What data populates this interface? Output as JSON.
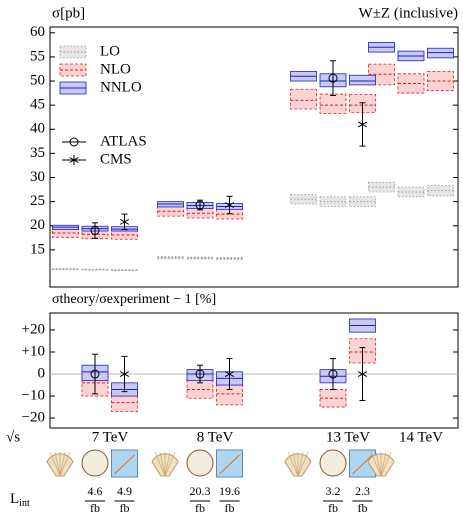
{
  "chart_data": [
    {
      "type": "band",
      "title": "W±Z (inclusive)",
      "y_label": "σ[pb]",
      "ylim": [
        7.3,
        61.2
      ],
      "yticks": [
        15,
        20,
        25,
        30,
        35,
        40,
        45,
        50,
        55,
        60
      ],
      "series": [
        {
          "name": "LO",
          "color": "#9a9a9a",
          "fill": "#e6e6e6",
          "values": [
            [
              11.0,
              10.9,
              10.8
            ],
            [
              13.4,
              13.3,
              13.2
            ],
            [
              25.5,
              25.0,
              25.0
            ],
            [
              28.0,
              27.0,
              27.3
            ]
          ],
          "low": [
            [
              10.9,
              10.8,
              10.7
            ],
            [
              13.2,
              13.1,
              13.0
            ],
            [
              24.5,
              24.0,
              24.0
            ],
            [
              27.0,
              26.0,
              26.2
            ]
          ],
          "high": [
            [
              11.1,
              11.0,
              10.9
            ],
            [
              13.6,
              13.5,
              13.4
            ],
            [
              26.5,
              26.0,
              26.0
            ],
            [
              29.0,
              28.0,
              28.4
            ]
          ]
        },
        {
          "name": "NLO",
          "color": "#e02020",
          "fill": "#fbd3d3",
          "values": [
            [
              18.5,
              18.2,
              18.1
            ],
            [
              23.0,
              22.6,
              22.4
            ],
            [
              46.0,
              45.0,
              45.0
            ],
            [
              51.4,
              49.5,
              50.0
            ]
          ],
          "low": [
            [
              17.6,
              17.3,
              17.2
            ],
            [
              22.0,
              21.6,
              21.4
            ],
            [
              44.2,
              43.3,
              43.5
            ],
            [
              49.2,
              47.5,
              48.0
            ]
          ],
          "high": [
            [
              19.6,
              19.2,
              19.1
            ],
            [
              24.2,
              23.8,
              23.6
            ],
            [
              48.3,
              47.3,
              47.2
            ],
            [
              53.5,
              51.5,
              52.0
            ]
          ]
        },
        {
          "name": "NNLO",
          "color": "#2020c8",
          "fill": "#c9c9f2",
          "values": [
            [
              19.7,
              19.4,
              19.3
            ],
            [
              24.5,
              24.2,
              24.0
            ],
            [
              51.0,
              50.0,
              50.0
            ],
            [
              57.0,
              55.2,
              55.9
            ]
          ],
          "low": [
            [
              19.2,
              18.9,
              18.9
            ],
            [
              23.9,
              23.6,
              23.4
            ],
            [
              50.0,
              48.8,
              49.2
            ],
            [
              56.0,
              54.2,
              54.8
            ]
          ],
          "high": [
            [
              20.1,
              19.9,
              19.8
            ],
            [
              25.0,
              24.8,
              24.6
            ],
            [
              52.0,
              51.5,
              51.2
            ],
            [
              58.0,
              56.2,
              56.8
            ]
          ]
        }
      ],
      "measurements": [
        {
          "name": "ATLAS",
          "marker": "circle",
          "values": [
            19.0,
            24.3,
            50.6,
            null
          ],
          "errors": [
            1.6,
            1.0,
            3.6,
            null
          ]
        },
        {
          "name": "CMS",
          "marker": "star",
          "values": [
            20.8,
            24.3,
            41.0,
            null
          ],
          "errors": [
            1.6,
            1.8,
            4.5,
            null
          ]
        }
      ]
    },
    {
      "type": "band",
      "y_label": "σtheory/σexperiment − 1 [%]",
      "ylim": [
        -24.5,
        27.7
      ],
      "yticks": [
        {
          "value": 20,
          "label": "+20"
        },
        {
          "value": 10,
          "label": "+10"
        },
        0,
        {
          "value": -10,
          "label": "−10"
        },
        {
          "value": -20,
          "label": "−20"
        }
      ],
      "categories": [
        "7 TeV",
        "8 TeV",
        "13 TeV",
        "14 TeV"
      ],
      "x_label": "√s",
      "series": [
        {
          "color": "#e02020",
          "fill": "#fbd3d3",
          "values": [
            [
              -4,
              -13
            ],
            [
              -7,
              -9
            ],
            [
              -11,
              10
            ],
            null
          ],
          "low": [
            [
              -10,
              -17
            ],
            [
              -11,
              -14
            ],
            [
              -15,
              5
            ],
            null
          ],
          "high": [
            [
              1,
              -8
            ],
            [
              -3,
              -5
            ],
            [
              -7,
              16
            ],
            null
          ]
        },
        {
          "color": "#2020c8",
          "fill": "#c9c9f2",
          "values": [
            [
              1,
              -7
            ],
            [
              0,
              -2
            ],
            [
              -1,
              22
            ],
            null
          ],
          "low": [
            [
              -3,
              -10
            ],
            [
              -3,
              -5
            ],
            [
              -4,
              19
            ],
            null
          ],
          "high": [
            [
              4,
              -4
            ],
            [
              2,
              1
            ],
            [
              2,
              25
            ],
            null
          ]
        }
      ],
      "measurements": [
        {
          "marker": "circle",
          "values": [
            0,
            0,
            0,
            null
          ],
          "errors": [
            9,
            4,
            7,
            null
          ]
        },
        {
          "marker": "star",
          "values": [
            0,
            0,
            0,
            null
          ],
          "errors": [
            8,
            7,
            12,
            null
          ]
        }
      ],
      "lumi_label": "L",
      "lumi_sub": "int",
      "lumi_unit": "fb",
      "lumi": [
        [
          4.6,
          4.9
        ],
        [
          20.3,
          19.6
        ],
        [
          3.2,
          2.3
        ],
        null
      ]
    }
  ]
}
